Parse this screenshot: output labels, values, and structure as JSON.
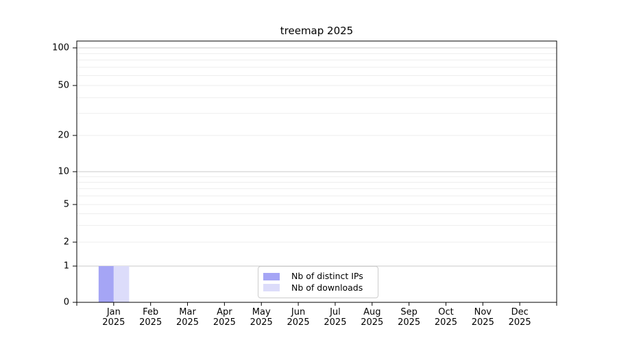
{
  "title": "treemap 2025",
  "legend": {
    "items": [
      {
        "label": "Nb of distinct IPs",
        "color": "#a5a5f5"
      },
      {
        "label": "Nb of downloads",
        "color": "#dcdcfa"
      }
    ]
  },
  "chart_data": {
    "type": "bar",
    "title": "treemap 2025",
    "categories": [
      "Jan",
      "Feb",
      "Mar",
      "Apr",
      "May",
      "Jun",
      "Jul",
      "Aug",
      "Sep",
      "Oct",
      "Nov",
      "Dec"
    ],
    "category_year": "2025",
    "series": [
      {
        "name": "Nb of distinct IPs",
        "color": "#a5a5f5",
        "values": [
          1,
          0,
          0,
          0,
          0,
          0,
          0,
          0,
          0,
          0,
          0,
          0
        ]
      },
      {
        "name": "Nb of downloads",
        "color": "#dcdcfa",
        "values": [
          1,
          0,
          0,
          0,
          0,
          0,
          0,
          0,
          0,
          0,
          0,
          0
        ]
      }
    ],
    "xlabel": "",
    "ylabel": "",
    "yscale": "symlog",
    "ylim": [
      0,
      110
    ],
    "yticks": [
      0,
      1,
      2,
      5,
      10,
      20,
      50,
      100
    ],
    "minor_grid_values": [
      90,
      80,
      70,
      60,
      50,
      40,
      30,
      20,
      9,
      8,
      7,
      6,
      5,
      4,
      3,
      2
    ],
    "major_grid_values": [
      100,
      10,
      1
    ],
    "grid": "horizontal",
    "legend_position": "lower center",
    "colors": {
      "major_grid": "#c9c9c9",
      "minor_grid": "#ededed",
      "axis": "#000000",
      "text": "#000000",
      "background": "#ffffff"
    }
  }
}
